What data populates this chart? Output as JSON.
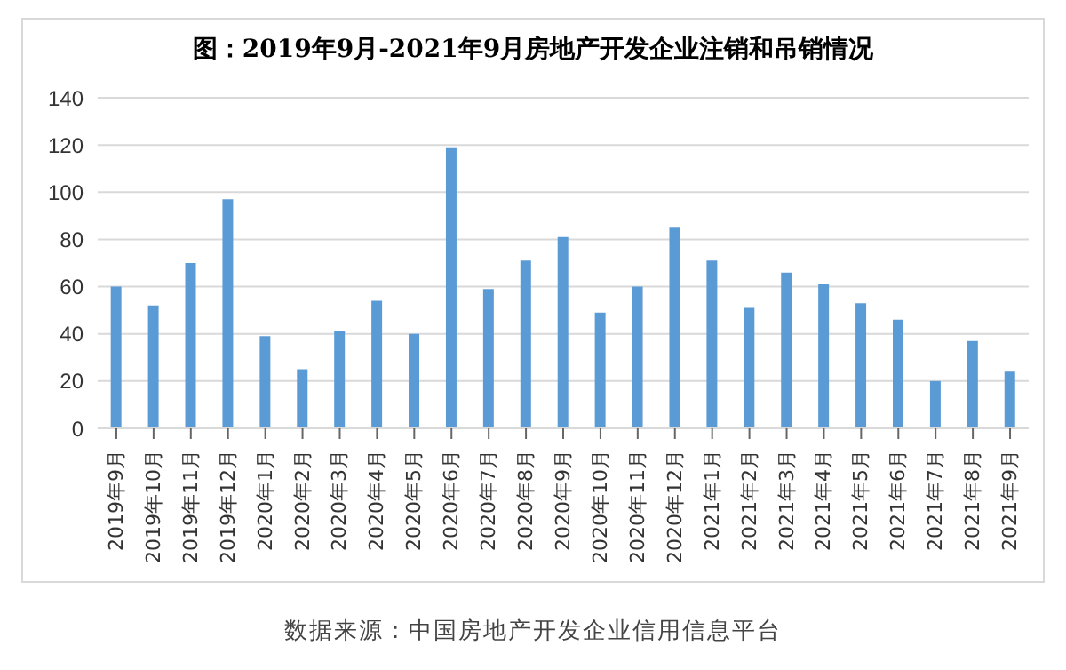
{
  "chart_data": {
    "type": "bar",
    "title": "图：2019年9月-2021年9月房地产开发企业注销和吊销情况",
    "categories": [
      "2019年9月",
      "2019年10月",
      "2019年11月",
      "2019年12月",
      "2020年1月",
      "2020年2月",
      "2020年3月",
      "2020年4月",
      "2020年5月",
      "2020年6月",
      "2020年7月",
      "2020年8月",
      "2020年9月",
      "2020年10月",
      "2020年11月",
      "2020年12月",
      "2021年1月",
      "2021年2月",
      "2021年3月",
      "2021年4月",
      "2021年5月",
      "2021年6月",
      "2021年7月",
      "2021年8月",
      "2021年9月"
    ],
    "values": [
      60,
      52,
      70,
      97,
      39,
      25,
      41,
      54,
      40,
      119,
      59,
      71,
      81,
      49,
      60,
      85,
      71,
      51,
      66,
      61,
      53,
      46,
      20,
      37,
      24
    ],
    "color": "#5b9bd5",
    "ylim": [
      0,
      140
    ],
    "yticks": [
      0,
      20,
      40,
      60,
      80,
      100,
      120,
      140
    ],
    "grid": "y",
    "annotations": [
      "数据来源：中国房地产开发企业信用信息平台"
    ]
  }
}
